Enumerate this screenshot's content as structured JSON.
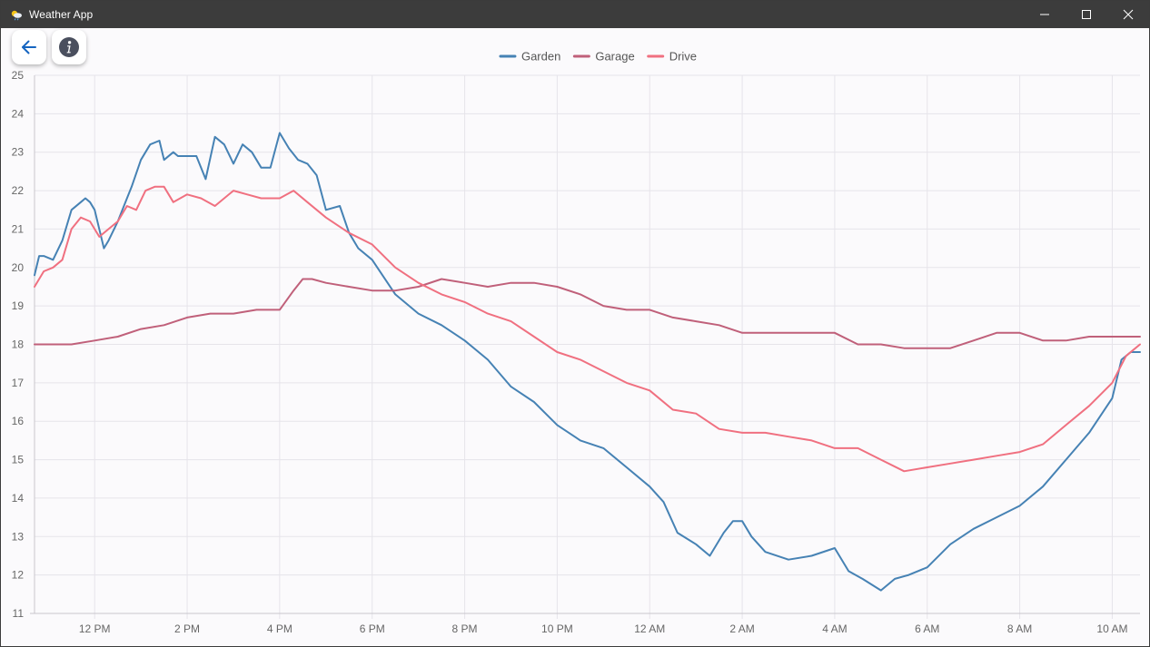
{
  "window": {
    "title": "Weather App",
    "controls": [
      "minimize",
      "maximize",
      "close"
    ]
  },
  "toolbar": {
    "back_icon": "arrow-left-icon",
    "info_icon": "info-icon",
    "accent": "#1565c0"
  },
  "chart_data": {
    "type": "line",
    "x_tick_labels": [
      "12 PM",
      "2 PM",
      "4 PM",
      "6 PM",
      "8 PM",
      "10 PM",
      "12 AM",
      "2 AM",
      "4 AM",
      "6 AM",
      "8 AM",
      "10 AM"
    ],
    "x_hours": [
      0,
      2,
      4,
      6,
      8,
      10,
      12,
      14,
      16,
      18,
      20,
      22
    ],
    "xlim_hours": [
      -1.3,
      22.6
    ],
    "ylim": [
      11,
      25
    ],
    "y_ticks": [
      11,
      12,
      13,
      14,
      15,
      16,
      17,
      18,
      19,
      20,
      21,
      22,
      23,
      24,
      25
    ],
    "grid": true,
    "legend": "top-center",
    "series": [
      {
        "name": "Garden",
        "color": "#4682b4",
        "x": [
          -1.3,
          -1.2,
          -1.1,
          -0.9,
          -0.7,
          -0.5,
          -0.3,
          -0.2,
          -0.1,
          0.0,
          0.2,
          0.3,
          0.5,
          0.7,
          0.8,
          1.0,
          1.2,
          1.4,
          1.5,
          1.7,
          1.8,
          2.0,
          2.2,
          2.4,
          2.6,
          2.8,
          3.0,
          3.2,
          3.4,
          3.6,
          3.8,
          4.0,
          4.2,
          4.4,
          4.6,
          4.8,
          5.0,
          5.3,
          5.5,
          5.7,
          6.0,
          6.5,
          7.0,
          7.5,
          8.0,
          8.5,
          9.0,
          9.5,
          10.0,
          10.5,
          11.0,
          11.5,
          12.0,
          12.3,
          12.6,
          13.0,
          13.3,
          13.6,
          13.8,
          14.0,
          14.2,
          14.5,
          15.0,
          15.5,
          16.0,
          16.3,
          16.6,
          17.0,
          17.3,
          17.6,
          18.0,
          18.5,
          19.0,
          19.5,
          20.0,
          20.5,
          21.0,
          21.5,
          22.0,
          22.2,
          22.4,
          22.6
        ],
        "y": [
          19.8,
          20.3,
          20.3,
          20.2,
          20.7,
          21.5,
          21.7,
          21.8,
          21.7,
          21.5,
          20.5,
          20.7,
          21.2,
          21.8,
          22.1,
          22.8,
          23.2,
          23.3,
          22.8,
          23.0,
          22.9,
          22.9,
          22.9,
          22.3,
          23.4,
          23.2,
          22.7,
          23.2,
          23.0,
          22.6,
          22.6,
          23.5,
          23.1,
          22.8,
          22.7,
          22.4,
          21.5,
          21.6,
          20.9,
          20.5,
          20.2,
          19.3,
          18.8,
          18.5,
          18.1,
          17.6,
          16.9,
          16.5,
          15.9,
          15.5,
          15.3,
          14.8,
          14.3,
          13.9,
          13.1,
          12.8,
          12.5,
          13.1,
          13.4,
          13.4,
          13.0,
          12.6,
          12.4,
          12.5,
          12.7,
          12.1,
          11.9,
          11.6,
          11.9,
          12.0,
          12.2,
          12.8,
          13.2,
          13.5,
          13.8,
          14.3,
          15.0,
          15.7,
          16.6,
          17.6,
          17.8,
          17.8
        ]
      },
      {
        "name": "Garage",
        "color": "#c0607a",
        "x": [
          -1.3,
          -1.0,
          -0.8,
          -0.5,
          0.0,
          0.5,
          1.0,
          1.5,
          2.0,
          2.5,
          3.0,
          3.5,
          4.0,
          4.3,
          4.5,
          4.7,
          5.0,
          5.5,
          6.0,
          6.5,
          7.0,
          7.5,
          8.0,
          8.5,
          9.0,
          9.5,
          10.0,
          10.5,
          11.0,
          11.5,
          12.0,
          12.5,
          13.0,
          13.5,
          14.0,
          14.5,
          15.0,
          15.5,
          16.0,
          16.5,
          17.0,
          17.5,
          18.0,
          18.5,
          19.0,
          19.5,
          20.0,
          20.5,
          21.0,
          21.5,
          22.0,
          22.6
        ],
        "y": [
          18.0,
          18.0,
          18.0,
          18.0,
          18.1,
          18.2,
          18.4,
          18.5,
          18.7,
          18.8,
          18.8,
          18.9,
          18.9,
          19.4,
          19.7,
          19.7,
          19.6,
          19.5,
          19.4,
          19.4,
          19.5,
          19.7,
          19.6,
          19.5,
          19.6,
          19.6,
          19.5,
          19.3,
          19.0,
          18.9,
          18.9,
          18.7,
          18.6,
          18.5,
          18.3,
          18.3,
          18.3,
          18.3,
          18.3,
          18.0,
          18.0,
          17.9,
          17.9,
          17.9,
          18.1,
          18.3,
          18.3,
          18.1,
          18.1,
          18.2,
          18.2,
          18.2
        ]
      },
      {
        "name": "Drive",
        "color": "#f07080",
        "x": [
          -1.3,
          -1.1,
          -0.9,
          -0.7,
          -0.5,
          -0.3,
          -0.1,
          0.1,
          0.3,
          0.5,
          0.7,
          0.9,
          1.1,
          1.3,
          1.5,
          1.7,
          2.0,
          2.3,
          2.6,
          3.0,
          3.3,
          3.6,
          4.0,
          4.3,
          4.6,
          5.0,
          5.5,
          6.0,
          6.5,
          7.0,
          7.5,
          8.0,
          8.5,
          9.0,
          9.5,
          10.0,
          10.5,
          11.0,
          11.5,
          12.0,
          12.5,
          13.0,
          13.5,
          14.0,
          14.5,
          15.0,
          15.5,
          16.0,
          16.5,
          17.0,
          17.5,
          18.0,
          18.5,
          19.0,
          19.5,
          20.0,
          20.5,
          21.0,
          21.5,
          22.0,
          22.3,
          22.6
        ],
        "y": [
          19.5,
          19.9,
          20.0,
          20.2,
          21.0,
          21.3,
          21.2,
          20.8,
          21.0,
          21.2,
          21.6,
          21.5,
          22.0,
          22.1,
          22.1,
          21.7,
          21.9,
          21.8,
          21.6,
          22.0,
          21.9,
          21.8,
          21.8,
          22.0,
          21.7,
          21.3,
          20.9,
          20.6,
          20.0,
          19.6,
          19.3,
          19.1,
          18.8,
          18.6,
          18.2,
          17.8,
          17.6,
          17.3,
          17.0,
          16.8,
          16.3,
          16.2,
          15.8,
          15.7,
          15.7,
          15.6,
          15.5,
          15.3,
          15.3,
          15.0,
          14.7,
          14.8,
          14.9,
          15.0,
          15.1,
          15.2,
          15.4,
          15.9,
          16.4,
          17.0,
          17.7,
          18.0
        ]
      }
    ]
  }
}
